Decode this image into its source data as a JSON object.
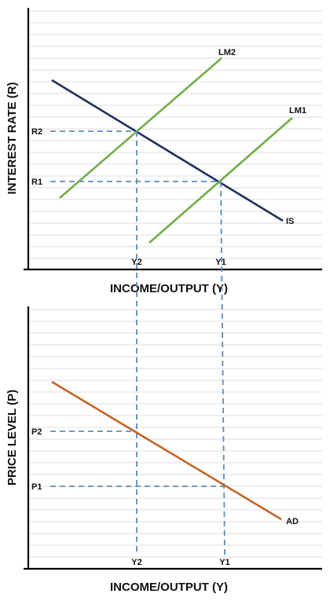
{
  "colors": {
    "grid": "#dddddd",
    "axis": "#000000",
    "lm": "#70ad47",
    "is": "#1f2f5c",
    "ad": "#c0662a",
    "guide": "#5b8db8",
    "text": "#111111"
  },
  "top_panel": {
    "y_axis_title": "INTEREST RATE (R)",
    "x_axis_title": "INCOME/OUTPUT (Y)",
    "y_levels": [
      "R2",
      "R1"
    ],
    "x_levels": [
      "Y2",
      "Y1"
    ],
    "curves": {
      "lm2": "LM2",
      "lm1": "LM1",
      "is": "IS"
    }
  },
  "bottom_panel": {
    "y_axis_title": "PRICE LEVEL (P)",
    "x_axis_title": "INCOME/OUTPUT (Y)",
    "y_levels": [
      "P2",
      "P1"
    ],
    "x_levels": [
      "Y2",
      "Y1"
    ],
    "curves": {
      "ad": "AD"
    }
  }
}
